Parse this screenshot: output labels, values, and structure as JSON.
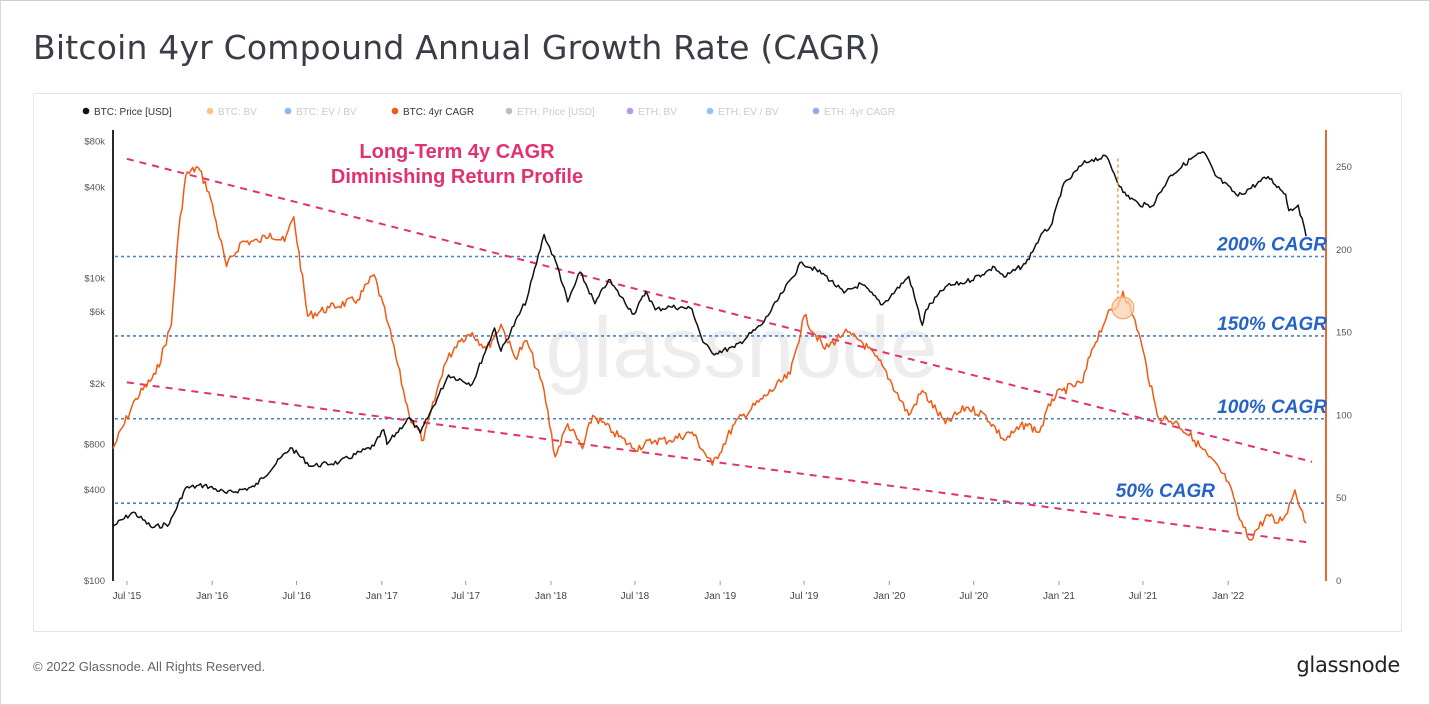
{
  "page": {
    "title": "Bitcoin 4yr Compound Annual Growth Rate (CAGR)",
    "copyright": "© 2022 Glassnode. All Rights Reserved.",
    "brand": "glassnode",
    "watermark": "glassnode"
  },
  "chart_data": {
    "type": "line",
    "legend": [
      {
        "name": "BTC: Price [USD]",
        "color": "#111111",
        "active": true
      },
      {
        "name": "BTC: BV",
        "color": "#f7931a",
        "active": false
      },
      {
        "name": "BTC: EV / BV",
        "color": "#2a7de1",
        "active": false
      },
      {
        "name": "BTC: 4yr CAGR",
        "color": "#f05a14",
        "active": true
      },
      {
        "name": "ETH: Price [USD]",
        "color": "#7a8aa0",
        "active": false
      },
      {
        "name": "ETH: BV",
        "color": "#7b3fe4",
        "active": false
      },
      {
        "name": "ETH: EV / BV",
        "color": "#3d8ef0",
        "active": false
      },
      {
        "name": "ETH: 4yr CAGR",
        "color": "#3d63dd",
        "active": false
      }
    ],
    "x_ticks": [
      "Jul '15",
      "Jan '16",
      "Jul '16",
      "Jan '17",
      "Jul '17",
      "Jan '18",
      "Jul '18",
      "Jan '19",
      "Jul '19",
      "Jan '20",
      "Jul '20",
      "Jan '21",
      "Jul '21",
      "Jan '22"
    ],
    "x_range": [
      "2015-06-01",
      "2022-07-31"
    ],
    "y_left": {
      "scale": "log",
      "range": [
        100,
        90000
      ],
      "ticks": [
        100,
        400,
        800,
        2000,
        6000,
        10000,
        40000,
        80000
      ],
      "tick_labels": [
        "$100",
        "$400",
        "$800",
        "$2k",
        "$6k",
        "$10k",
        "$40k",
        "$80k"
      ]
    },
    "y_right": {
      "scale": "linear",
      "range": [
        0,
        270
      ],
      "ticks": [
        0,
        50,
        100,
        150,
        200,
        250
      ],
      "tick_labels": [
        "0",
        "50",
        "100",
        "150",
        "200",
        "250"
      ]
    },
    "series": [
      {
        "name": "BTC: Price [USD]",
        "axis": "left",
        "color": "#111111",
        "x": [
          "2015-06-01",
          "2015-07-15",
          "2015-08-25",
          "2015-10-01",
          "2015-11-04",
          "2015-12-15",
          "2016-02-01",
          "2016-04-01",
          "2016-06-18",
          "2016-08-01",
          "2016-10-01",
          "2016-12-15",
          "2017-01-05",
          "2017-01-12",
          "2017-03-01",
          "2017-03-25",
          "2017-05-25",
          "2017-07-15",
          "2017-09-01",
          "2017-09-15",
          "2017-11-10",
          "2017-12-17",
          "2018-01-15",
          "2018-02-06",
          "2018-03-05",
          "2018-04-06",
          "2018-05-05",
          "2018-06-29",
          "2018-07-25",
          "2018-08-14",
          "2018-09-15",
          "2018-11-01",
          "2018-11-25",
          "2018-12-15",
          "2019-02-01",
          "2019-04-02",
          "2019-05-15",
          "2019-06-26",
          "2019-08-15",
          "2019-09-25",
          "2019-11-01",
          "2019-12-17",
          "2020-02-12",
          "2020-03-12",
          "2020-03-20",
          "2020-05-01",
          "2020-06-15",
          "2020-07-27",
          "2020-08-15",
          "2020-09-05",
          "2020-10-21",
          "2020-11-20",
          "2020-12-17",
          "2021-01-08",
          "2021-02-21",
          "2021-03-13",
          "2021-04-14",
          "2021-05-19",
          "2021-06-22",
          "2021-07-20",
          "2021-08-30",
          "2021-10-20",
          "2021-11-10",
          "2021-12-04",
          "2022-01-22",
          "2022-03-28",
          "2022-05-05",
          "2022-05-12",
          "2022-06-01",
          "2022-06-18"
        ],
        "values": [
          230,
          285,
          225,
          240,
          410,
          430,
          380,
          420,
          760,
          575,
          610,
          780,
          1000,
          800,
          1200,
          950,
          2300,
          2000,
          4700,
          3300,
          7300,
          19500,
          12000,
          7000,
          11000,
          6800,
          9800,
          5800,
          8200,
          6200,
          6500,
          6300,
          3800,
          3200,
          3500,
          5000,
          8000,
          12800,
          10500,
          8000,
          9200,
          6700,
          10300,
          4900,
          6200,
          8800,
          9500,
          11000,
          11900,
          10200,
          12500,
          18500,
          23000,
          40000,
          57000,
          61000,
          63500,
          37000,
          31000,
          30000,
          48000,
          64000,
          68000,
          48000,
          35000,
          47000,
          36000,
          28000,
          30500,
          19000
        ]
      },
      {
        "name": "BTC: 4yr CAGR",
        "axis": "right",
        "color": "#f05a14",
        "x": [
          "2015-06-01",
          "2015-07-20",
          "2015-09-01",
          "2015-10-05",
          "2015-10-20",
          "2015-11-05",
          "2015-12-01",
          "2015-12-25",
          "2016-02-01",
          "2016-03-05",
          "2016-04-10",
          "2016-05-05",
          "2016-06-05",
          "2016-06-25",
          "2016-07-25",
          "2016-09-10",
          "2016-11-10",
          "2016-12-15",
          "2017-01-15",
          "2017-03-01",
          "2017-04-01",
          "2017-05-15",
          "2017-06-15",
          "2017-07-15",
          "2017-08-15",
          "2017-09-15",
          "2017-10-15",
          "2017-11-10",
          "2017-12-17",
          "2018-01-10",
          "2018-02-06",
          "2018-03-10",
          "2018-04-01",
          "2018-05-15",
          "2018-06-29",
          "2018-08-14",
          "2018-09-15",
          "2018-11-01",
          "2018-12-15",
          "2019-02-01",
          "2019-04-02",
          "2019-06-01",
          "2019-07-01",
          "2019-08-15",
          "2019-09-25",
          "2019-11-01",
          "2019-12-17",
          "2020-02-12",
          "2020-03-12",
          "2020-05-01",
          "2020-06-15",
          "2020-07-27",
          "2020-09-05",
          "2020-10-21",
          "2020-11-20",
          "2020-12-17",
          "2021-01-08",
          "2021-02-21",
          "2021-03-13",
          "2021-04-14",
          "2021-05-05",
          "2021-05-19",
          "2021-06-10",
          "2021-06-22",
          "2021-08-01",
          "2021-09-15",
          "2021-10-20",
          "2021-11-20",
          "2022-01-01",
          "2022-01-22",
          "2022-02-15",
          "2022-03-28",
          "2022-04-15",
          "2022-05-05",
          "2022-05-25",
          "2022-06-18"
        ],
        "values": [
          80,
          110,
          125,
          155,
          210,
          245,
          250,
          235,
          190,
          205,
          205,
          210,
          205,
          220,
          160,
          165,
          170,
          185,
          155,
          100,
          85,
          130,
          145,
          150,
          140,
          155,
          135,
          145,
          115,
          75,
          95,
          80,
          100,
          90,
          80,
          85,
          85,
          90,
          70,
          95,
          110,
          125,
          160,
          140,
          150,
          145,
          130,
          100,
          115,
          95,
          105,
          100,
          85,
          95,
          90,
          110,
          115,
          120,
          140,
          160,
          165,
          175,
          160,
          150,
          100,
          95,
          85,
          75,
          60,
          40,
          25,
          40,
          35,
          40,
          55,
          35
        ]
      }
    ],
    "reference_lines": [
      {
        "label": "200% CAGR",
        "value": 196,
        "axis": "right"
      },
      {
        "label": "150% CAGR",
        "value": 148,
        "axis": "right"
      },
      {
        "label": "100% CAGR",
        "value": 98,
        "axis": "right"
      },
      {
        "label": "50% CAGR",
        "value": 47,
        "axis": "right"
      }
    ],
    "trend_lines": [
      {
        "axis": "right",
        "x": [
          "2015-07-01",
          "2022-07-01"
        ],
        "values": [
          255,
          72
        ]
      },
      {
        "axis": "right",
        "x": [
          "2015-07-01",
          "2022-07-01"
        ],
        "values": [
          120,
          23
        ]
      }
    ],
    "annotations": [
      {
        "text_lines": [
          "Long-Term 4y CAGR",
          "Diminishing Return Profile"
        ],
        "color": "#e2316e"
      },
      {
        "type": "marker",
        "x": "2021-05-08",
        "axis": "right",
        "value": 165,
        "drop_from_left_value": 62000
      }
    ]
  }
}
